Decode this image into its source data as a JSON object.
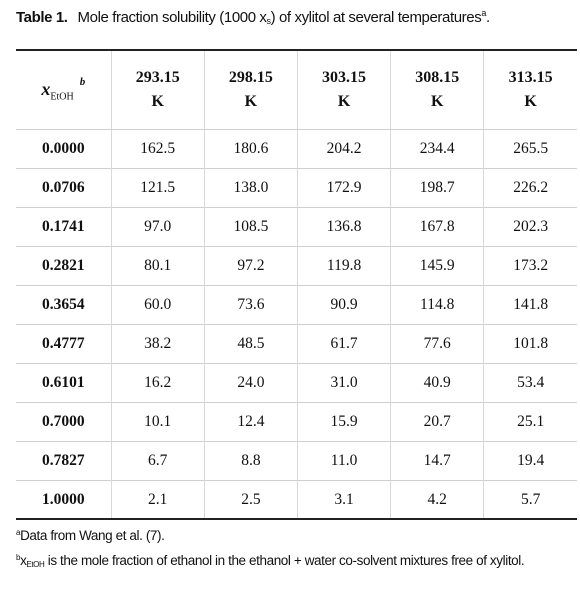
{
  "caption": {
    "label": "Table 1.",
    "text_before": "Mole fraction solubility (1000 x",
    "sub": "s",
    "text_after": ") of xylitol at several temperatures",
    "sup": "a",
    "end": "."
  },
  "header": {
    "x_symbol": "x",
    "x_sub": "EtOH",
    "x_sup": "b",
    "temperatures": [
      "293.15",
      "298.15",
      "303.15",
      "308.15",
      "313.15"
    ],
    "unit": "K"
  },
  "rows": [
    {
      "x": "0.0000",
      "values": [
        "162.5",
        "180.6",
        "204.2",
        "234.4",
        "265.5"
      ]
    },
    {
      "x": "0.0706",
      "values": [
        "121.5",
        "138.0",
        "172.9",
        "198.7",
        "226.2"
      ]
    },
    {
      "x": "0.1741",
      "values": [
        "97.0",
        "108.5",
        "136.8",
        "167.8",
        "202.3"
      ]
    },
    {
      "x": "0.2821",
      "values": [
        "80.1",
        "97.2",
        "119.8",
        "145.9",
        "173.2"
      ]
    },
    {
      "x": "0.3654",
      "values": [
        "60.0",
        "73.6",
        "90.9",
        "114.8",
        "141.8"
      ]
    },
    {
      "x": "0.4777",
      "values": [
        "38.2",
        "48.5",
        "61.7",
        "77.6",
        "101.8"
      ]
    },
    {
      "x": "0.6101",
      "values": [
        "16.2",
        "24.0",
        "31.0",
        "40.9",
        "53.4"
      ]
    },
    {
      "x": "0.7000",
      "values": [
        "10.1",
        "12.4",
        "15.9",
        "20.7",
        "25.1"
      ]
    },
    {
      "x": "0.7827",
      "values": [
        "6.7",
        "8.8",
        "11.0",
        "14.7",
        "19.4"
      ]
    },
    {
      "x": "1.0000",
      "values": [
        "2.1",
        "2.5",
        "3.1",
        "4.2",
        "5.7"
      ]
    }
  ],
  "footnotes": {
    "a_mark": "a",
    "a_text": "Data from Wang et al. (7).",
    "b_mark": "b",
    "b_symbol": "x",
    "b_sub": "EtOH",
    "b_text": " is the mole fraction of ethanol in the ethanol + water co-solvent mixtures free of xylitol."
  }
}
